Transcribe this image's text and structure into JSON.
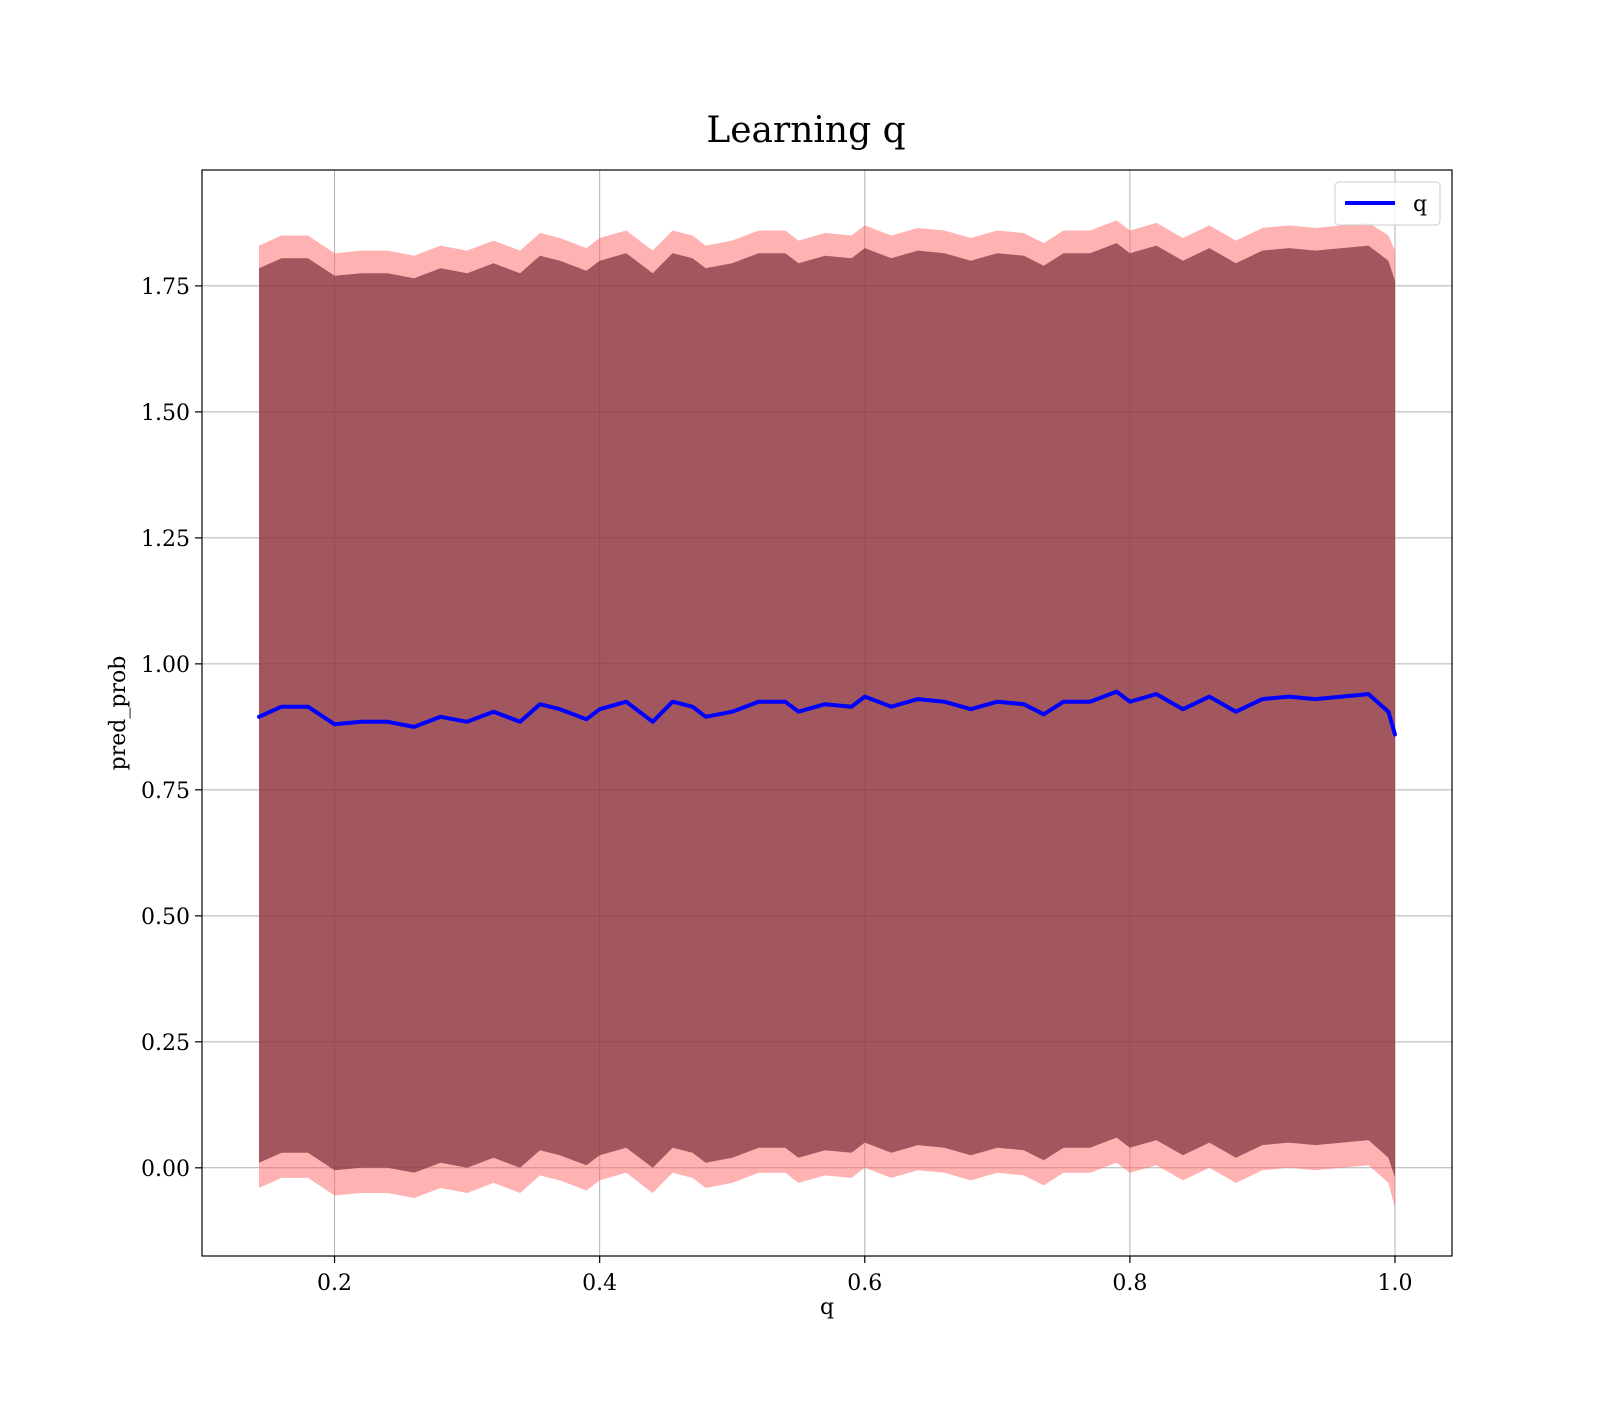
{
  "chart_data": {
    "type": "line",
    "title": "Learning q",
    "xlabel": "q",
    "ylabel": "pred_prob",
    "xlim": [
      0.1,
      1.043
    ],
    "ylim": [
      -0.175,
      1.98
    ],
    "xticks": [
      0.2,
      0.4,
      0.6,
      0.8,
      1.0
    ],
    "xtick_labels": [
      "0.2",
      "0.4",
      "0.6",
      "0.8",
      "1.0"
    ],
    "yticks": [
      0.0,
      0.25,
      0.5,
      0.75,
      1.0,
      1.25,
      1.5,
      1.75
    ],
    "ytick_labels": [
      "0.00",
      "0.25",
      "0.50",
      "0.75",
      "1.00",
      "1.25",
      "1.50",
      "1.75"
    ],
    "grid": true,
    "legend": {
      "position": "top-right",
      "entries": [
        "q"
      ]
    },
    "colors": {
      "line": "#0000ff",
      "outer_band": "#ff6666",
      "outer_band_opacity": 0.5,
      "inner_band": "#7a2f3a",
      "inner_band_opacity": 0.7,
      "grid": "#b0b0b0"
    },
    "series": [
      {
        "name": "q",
        "kind": "line",
        "x": [
          0.143,
          0.16,
          0.18,
          0.2,
          0.22,
          0.24,
          0.26,
          0.28,
          0.3,
          0.32,
          0.34,
          0.355,
          0.37,
          0.39,
          0.4,
          0.42,
          0.44,
          0.455,
          0.47,
          0.48,
          0.5,
          0.52,
          0.54,
          0.55,
          0.57,
          0.59,
          0.6,
          0.62,
          0.64,
          0.66,
          0.68,
          0.7,
          0.72,
          0.735,
          0.75,
          0.77,
          0.79,
          0.8,
          0.82,
          0.84,
          0.86,
          0.88,
          0.9,
          0.92,
          0.94,
          0.96,
          0.98,
          0.995,
          1.0
        ],
        "y": [
          0.895,
          0.915,
          0.915,
          0.88,
          0.885,
          0.885,
          0.875,
          0.895,
          0.885,
          0.905,
          0.885,
          0.92,
          0.91,
          0.89,
          0.91,
          0.925,
          0.885,
          0.925,
          0.915,
          0.895,
          0.905,
          0.925,
          0.925,
          0.905,
          0.92,
          0.915,
          0.935,
          0.915,
          0.93,
          0.925,
          0.91,
          0.925,
          0.92,
          0.9,
          0.925,
          0.925,
          0.945,
          0.925,
          0.94,
          0.91,
          0.935,
          0.905,
          0.93,
          0.935,
          0.93,
          0.935,
          0.94,
          0.905,
          0.86
        ]
      },
      {
        "kind": "band-outer",
        "x": [
          0.143,
          0.16,
          0.18,
          0.2,
          0.22,
          0.24,
          0.26,
          0.28,
          0.3,
          0.32,
          0.34,
          0.355,
          0.37,
          0.39,
          0.4,
          0.42,
          0.44,
          0.455,
          0.47,
          0.48,
          0.5,
          0.52,
          0.54,
          0.55,
          0.57,
          0.59,
          0.6,
          0.62,
          0.64,
          0.66,
          0.68,
          0.7,
          0.72,
          0.735,
          0.75,
          0.77,
          0.79,
          0.8,
          0.82,
          0.84,
          0.86,
          0.88,
          0.9,
          0.92,
          0.94,
          0.96,
          0.98,
          0.995,
          1.0
        ],
        "upper": [
          1.83,
          1.85,
          1.85,
          1.815,
          1.82,
          1.82,
          1.81,
          1.83,
          1.82,
          1.84,
          1.82,
          1.855,
          1.845,
          1.825,
          1.845,
          1.86,
          1.82,
          1.86,
          1.85,
          1.83,
          1.84,
          1.86,
          1.86,
          1.84,
          1.855,
          1.85,
          1.87,
          1.85,
          1.865,
          1.86,
          1.845,
          1.86,
          1.855,
          1.835,
          1.86,
          1.86,
          1.88,
          1.86,
          1.875,
          1.845,
          1.87,
          1.84,
          1.865,
          1.87,
          1.865,
          1.87,
          1.875,
          1.85,
          1.82
        ],
        "lower": [
          -0.04,
          -0.02,
          -0.02,
          -0.055,
          -0.05,
          -0.05,
          -0.06,
          -0.04,
          -0.05,
          -0.03,
          -0.05,
          -0.015,
          -0.025,
          -0.045,
          -0.025,
          -0.01,
          -0.05,
          -0.01,
          -0.02,
          -0.04,
          -0.03,
          -0.01,
          -0.01,
          -0.03,
          -0.015,
          -0.02,
          0.0,
          -0.02,
          -0.005,
          -0.01,
          -0.025,
          -0.01,
          -0.015,
          -0.035,
          -0.01,
          -0.01,
          0.01,
          -0.01,
          0.005,
          -0.025,
          0.0,
          -0.03,
          -0.005,
          0.0,
          -0.005,
          0.0,
          0.005,
          -0.03,
          -0.08
        ]
      },
      {
        "kind": "band-inner",
        "x": [
          0.143,
          0.16,
          0.18,
          0.2,
          0.22,
          0.24,
          0.26,
          0.28,
          0.3,
          0.32,
          0.34,
          0.355,
          0.37,
          0.39,
          0.4,
          0.42,
          0.44,
          0.455,
          0.47,
          0.48,
          0.5,
          0.52,
          0.54,
          0.55,
          0.57,
          0.59,
          0.6,
          0.62,
          0.64,
          0.66,
          0.68,
          0.7,
          0.72,
          0.735,
          0.75,
          0.77,
          0.79,
          0.8,
          0.82,
          0.84,
          0.86,
          0.88,
          0.9,
          0.92,
          0.94,
          0.96,
          0.98,
          0.995,
          1.0
        ],
        "upper": [
          1.785,
          1.805,
          1.805,
          1.77,
          1.775,
          1.775,
          1.765,
          1.785,
          1.775,
          1.795,
          1.775,
          1.81,
          1.8,
          1.78,
          1.8,
          1.815,
          1.775,
          1.815,
          1.805,
          1.785,
          1.795,
          1.815,
          1.815,
          1.795,
          1.81,
          1.805,
          1.825,
          1.805,
          1.82,
          1.815,
          1.8,
          1.815,
          1.81,
          1.79,
          1.815,
          1.815,
          1.835,
          1.815,
          1.83,
          1.8,
          1.825,
          1.795,
          1.82,
          1.825,
          1.82,
          1.825,
          1.83,
          1.8,
          1.76
        ],
        "lower": [
          0.01,
          0.03,
          0.03,
          -0.005,
          0.0,
          0.0,
          -0.01,
          0.01,
          0.0,
          0.02,
          0.0,
          0.035,
          0.025,
          0.005,
          0.025,
          0.04,
          0.0,
          0.04,
          0.03,
          0.01,
          0.02,
          0.04,
          0.04,
          0.02,
          0.035,
          0.03,
          0.05,
          0.03,
          0.045,
          0.04,
          0.025,
          0.04,
          0.035,
          0.015,
          0.04,
          0.04,
          0.06,
          0.04,
          0.055,
          0.025,
          0.05,
          0.02,
          0.045,
          0.05,
          0.045,
          0.05,
          0.055,
          0.02,
          -0.02
        ]
      }
    ]
  }
}
